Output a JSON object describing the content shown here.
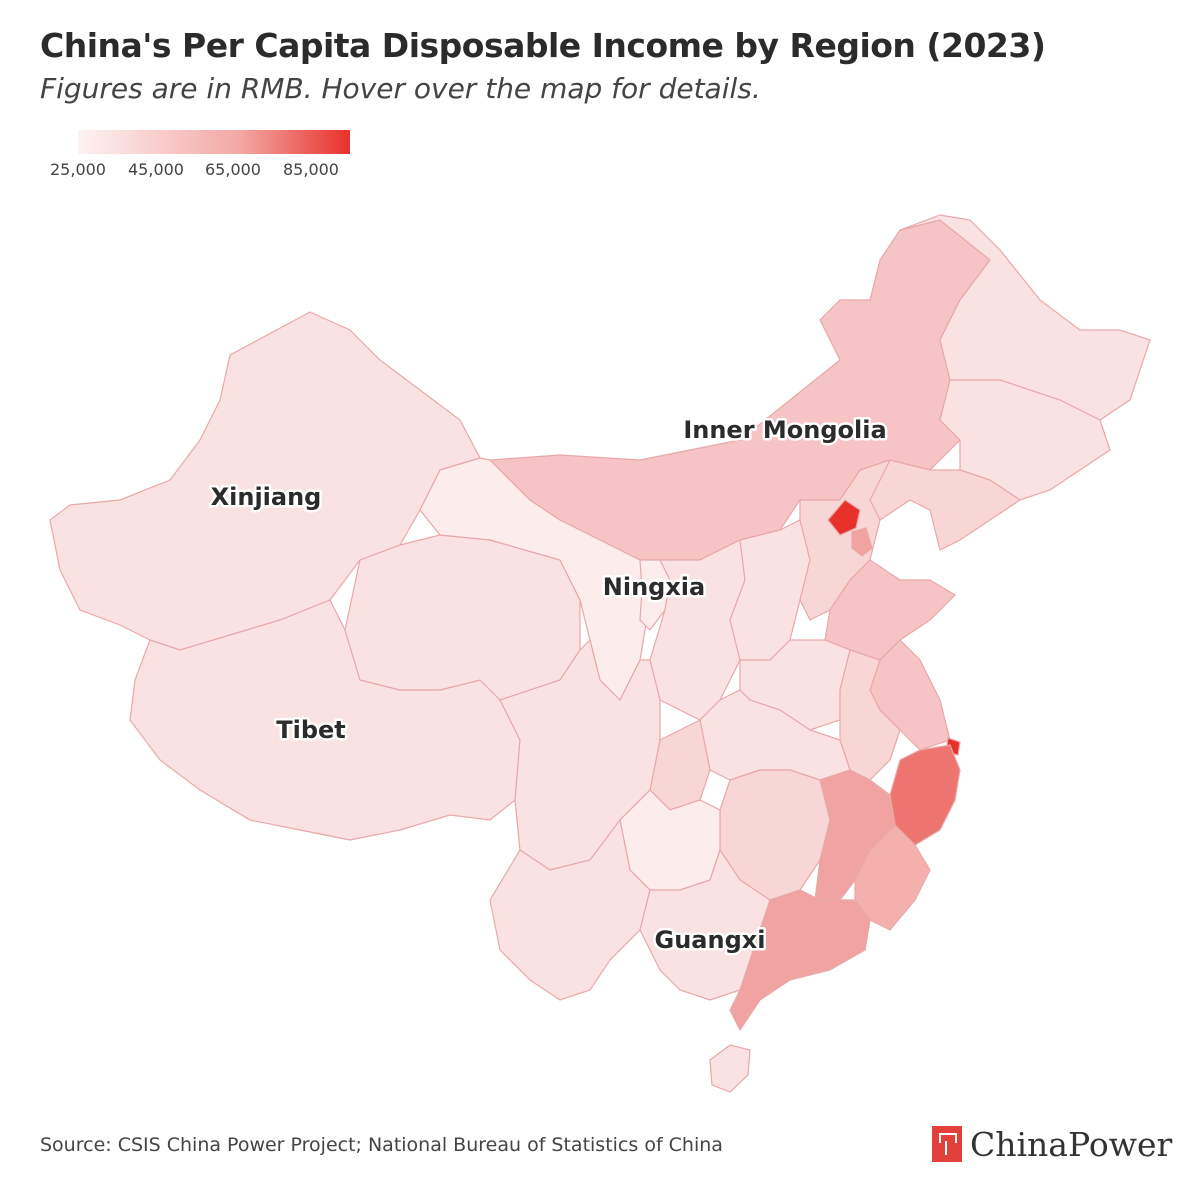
{
  "header": {
    "title": "China's Per Capita Disposable Income by Region (2023)",
    "subtitle": "Figures are in RMB. Hover over the map for details."
  },
  "legend": {
    "ticks": [
      "25,000",
      "45,000",
      "65,000",
      "85,000"
    ],
    "min": 25000,
    "max": 85000,
    "color_low": "#fdf1f1",
    "color_high": "#e8312a"
  },
  "map": {
    "labels": {
      "inner_mongolia": "Inner Mongolia",
      "xinjiang": "Xinjiang",
      "ningxia": "Ningxia",
      "tibet": "Tibet",
      "guangxi": "Guangxi"
    },
    "colors": {
      "lowest": "#fcecec",
      "low": "#fbe2e2",
      "mid_low": "#f9d6d6",
      "mid": "#f6c4c4",
      "mid_high": "#f0a3a0",
      "high": "#ee756f",
      "highest": "#e8312a"
    }
  },
  "footer": {
    "source": "Source: CSIS China Power Project; National Bureau of Statistics of China",
    "brand": "ChinaPower"
  }
}
